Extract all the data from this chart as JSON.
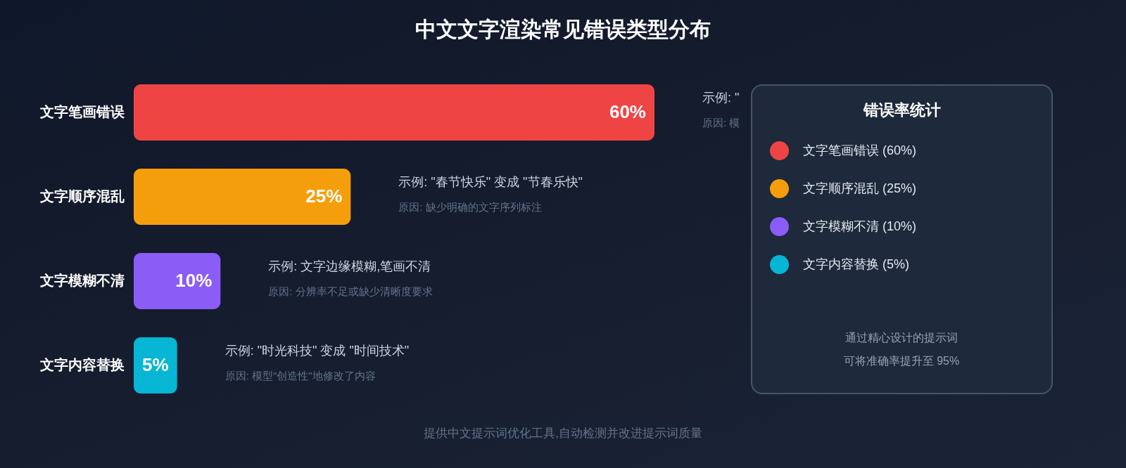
{
  "chart_data": {
    "type": "bar",
    "title": "中文文字渲染常见错误类型分布",
    "orientation": "horizontal",
    "categories": [
      "文字笔画错误",
      "文字顺序混乱",
      "文字模糊不清",
      "文字内容替换"
    ],
    "series": [
      {
        "name": "文字笔画错误 (60%)",
        "color": "#ef4444",
        "values": [
          60,
          null,
          null,
          null
        ],
        "value_labels": [
          "60%",
          null,
          null,
          null
        ]
      },
      {
        "name": "文字顺序混乱 (25%)",
        "color": "#f59e0b",
        "values": [
          null,
          25,
          null,
          null
        ],
        "value_labels": [
          null,
          "25%",
          null,
          null
        ]
      },
      {
        "name": "文字模糊不清 (10%)",
        "color": "#8b5cf6",
        "values": [
          null,
          null,
          10,
          null
        ],
        "value_labels": [
          null,
          null,
          "10%",
          null
        ]
      },
      {
        "name": "文字内容替换 (5%)",
        "color": "#06b6d4",
        "values": [
          null,
          null,
          null,
          5
        ],
        "value_labels": [
          null,
          null,
          null,
          "5%"
        ]
      }
    ],
    "legend": "right",
    "legend_title": "错误率统计",
    "annotations": [
      "示例: \"",
      "原因: 模",
      "示例: \"春节快乐\" 变成 \"节春乐快\"",
      "原因: 缺少明确的文字序列标注",
      "示例: 文字边缘模糊,笔画不清",
      "原因: 分辨率不足或缺少清晰度要求",
      "示例: \"时光科技\" 变成 \"时间技术\"",
      "原因: 模型\"创造性\"地修改了内容",
      "通过精心设计的提示词",
      "可将准确率提升至 95%",
      "提供中文提示词优化工具,自动检测并改进提示词质量"
    ]
  }
}
